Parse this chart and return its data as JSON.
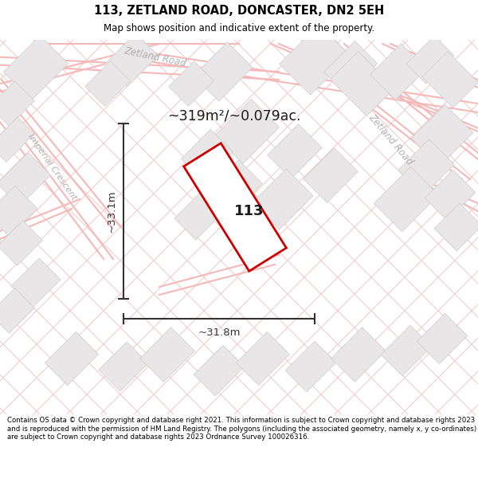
{
  "title": "113, ZETLAND ROAD, DONCASTER, DN2 5EH",
  "subtitle": "Map shows position and indicative extent of the property.",
  "footer": "Contains OS data © Crown copyright and database right 2021. This information is subject to Crown copyright and database rights 2023 and is reproduced with the permission of HM Land Registry. The polygons (including the associated geometry, namely x, y co-ordinates) are subject to Crown copyright and database rights 2023 Ordnance Survey 100026316.",
  "area_label": "~319m²/~0.079ac.",
  "width_label": "~31.8m",
  "height_label": "~33.1m",
  "property_number": "113",
  "bg_color": "#ffffff",
  "map_bg_color": "#fafafa",
  "plot_border_color": "#cc0000",
  "road_line_color": "#f5b8b8",
  "road_label_color": "#b0b0b0",
  "building_fill": "#e8e6e6",
  "building_edge": "#d0cccc",
  "grid_line_color": "#f0c8c8",
  "dim_line_color": "#333333",
  "text_color": "#1a1a1a"
}
